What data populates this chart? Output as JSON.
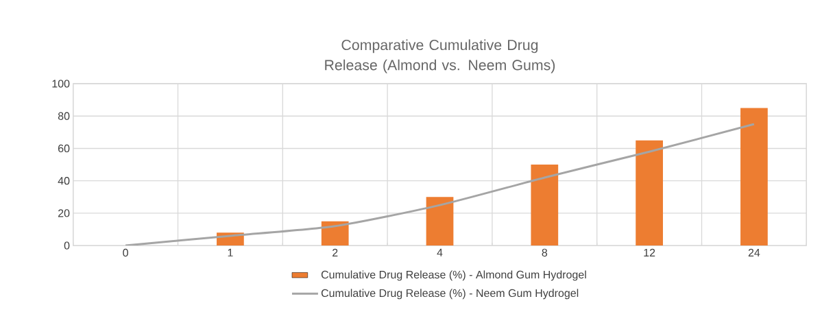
{
  "chart_data": {
    "type": "bar",
    "title": "Comparative Cumulative Drug Release (Almond vs. Neem Gums)",
    "categories": [
      "0",
      "1",
      "2",
      "4",
      "8",
      "12",
      "24"
    ],
    "series": [
      {
        "name": "Cumulative Drug Release (%) - Almond Gum Hydrogel",
        "color": "#ed7d31",
        "values": [
          0,
          8,
          15,
          30,
          50,
          65,
          85
        ]
      },
      {
        "name": "Cumulative Drug Release (%) - Neem Gum Hydrogel",
        "type": "line",
        "color": "#a5a5a5",
        "values": [
          0,
          6,
          12,
          25,
          42,
          58,
          75
        ]
      }
    ],
    "ylim": [
      0,
      100
    ],
    "yticks": [
      0,
      20,
      40,
      60,
      80,
      100
    ],
    "grid": true,
    "legend": "bottom"
  }
}
